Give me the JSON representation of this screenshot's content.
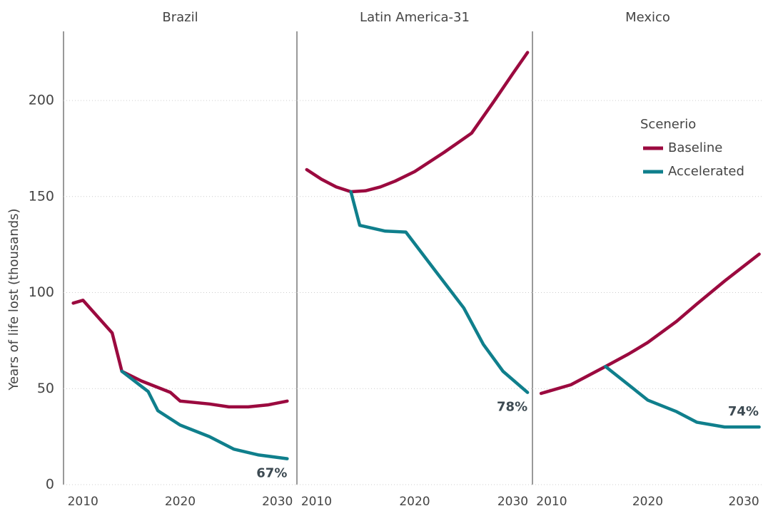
{
  "chart_data": [
    {
      "type": "line",
      "title": "Brazil",
      "ylabel": "Years of life lost (thousands)",
      "xlim": [
        2008,
        2032
      ],
      "xticks": [
        2010,
        2020,
        2030
      ],
      "ylim": [
        0,
        236
      ],
      "yticks": [
        0,
        50,
        100,
        150,
        200
      ],
      "grid": true,
      "series": [
        {
          "name": "Baseline",
          "color": "#9b0a3f",
          "x": [
            2009,
            2010,
            2013,
            2014,
            2016,
            2018,
            2019,
            2020,
            2023,
            2025,
            2027,
            2029,
            2031
          ],
          "values": [
            94.5,
            96,
            79,
            59,
            54,
            50,
            48,
            43.5,
            42,
            40.5,
            40.5,
            41.5,
            43.5
          ]
        },
        {
          "name": "Accelerated",
          "color": "#0f7f8c",
          "x": [
            2014,
            2016.7,
            2017.7,
            2020,
            2023,
            2025.5,
            2028,
            2031
          ],
          "values": [
            59,
            48.5,
            38.5,
            31,
            25,
            18.5,
            15.5,
            13.5
          ],
          "end_label": "67%",
          "end_label_position": "below"
        }
      ]
    },
    {
      "type": "line",
      "title": "Latin America-31",
      "xlim": [
        2008,
        2032
      ],
      "xticks": [
        2010,
        2020,
        2030
      ],
      "ylim": [
        0,
        236
      ],
      "yticks": [
        0,
        50,
        100,
        150,
        200
      ],
      "grid": true,
      "series": [
        {
          "name": "Baseline",
          "color": "#9b0a3f",
          "x": [
            2009,
            2010.5,
            2012,
            2013.5,
            2015,
            2016.5,
            2018,
            2020,
            2023,
            2025.8,
            2028,
            2030,
            2031.5
          ],
          "values": [
            164,
            159,
            155,
            152.5,
            153,
            155,
            158,
            163,
            173,
            183,
            199,
            214,
            225
          ]
        },
        {
          "name": "Accelerated",
          "color": "#0f7f8c",
          "x": [
            2013.5,
            2014.4,
            2017,
            2019.1,
            2022,
            2025,
            2027,
            2029,
            2031.5
          ],
          "values": [
            152.5,
            135,
            132,
            131.5,
            112,
            92,
            73,
            59,
            48
          ],
          "end_label": "78%",
          "end_label_position": "below"
        }
      ]
    },
    {
      "type": "line",
      "title": "Mexico",
      "legend_title": "Scenerio",
      "legend": "upper right",
      "xlim": [
        2008,
        2032
      ],
      "xticks": [
        2010,
        2020,
        2030
      ],
      "ylim": [
        0,
        236
      ],
      "yticks": [
        0,
        50,
        100,
        150,
        200
      ],
      "grid": true,
      "series": [
        {
          "name": "Baseline",
          "color": "#9b0a3f",
          "x": [
            2008.9,
            2012,
            2015.6,
            2018,
            2020,
            2023,
            2025.1,
            2028,
            2031.6
          ],
          "values": [
            47.5,
            52,
            61.5,
            68,
            74,
            85,
            94,
            106,
            120
          ]
        },
        {
          "name": "Accelerated",
          "color": "#0f7f8c",
          "x": [
            2015.6,
            2018,
            2020,
            2023,
            2025.1,
            2028,
            2031.6
          ],
          "values": [
            61.5,
            52,
            44,
            38,
            32.5,
            30,
            30
          ],
          "end_label": "74%",
          "end_label_position": "above"
        }
      ]
    }
  ]
}
